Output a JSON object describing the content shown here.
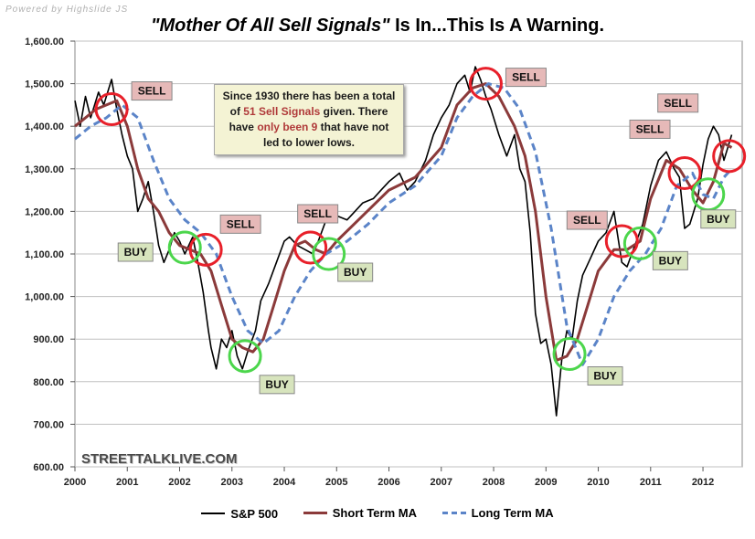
{
  "credit": "Powered by Highslide JS",
  "title": {
    "quoted": "\"Mother Of All Sell Signals\"",
    "rest": " Is In...This Is A Warning."
  },
  "watermark": "STREETTALKLIVE.COM",
  "infobox": {
    "part1": "Since 1930 there has been a total of ",
    "highlight1": "51 Sell Signals",
    "part2": " given. There have ",
    "highlight2": "only been 9",
    "part3": " that have not led to lower lows."
  },
  "legend": {
    "sp500": "S&P 500",
    "short_ma": "Short Term MA",
    "long_ma": "Long Term MA"
  },
  "colors": {
    "sp500": "#000000",
    "short_ma": "#8b3a3a",
    "long_ma": "#5b84c8",
    "sell_circle": "#e8202a",
    "buy_circle": "#4cd64c",
    "sell_label_bg": "#e6b9b8",
    "buy_label_bg": "#d7e4bd",
    "grid": "#c0c0c0"
  },
  "chart_data": {
    "type": "line",
    "title": "\"Mother Of All Sell Signals\" Is In...This Is A Warning.",
    "xlabel": "",
    "ylabel": "",
    "xlim": [
      2000,
      2012.75
    ],
    "ylim": [
      600,
      1600
    ],
    "grid": true,
    "legend_position": "bottom",
    "x_ticks": [
      "2000",
      "2001",
      "2002",
      "2003",
      "2004",
      "2005",
      "2006",
      "2007",
      "2008",
      "2009",
      "2010",
      "2011",
      "2012"
    ],
    "y_ticks": [
      "600.00",
      "700.00",
      "800.00",
      "900.00",
      "1,000.00",
      "1,100.00",
      "1,200.00",
      "1,300.00",
      "1,400.00",
      "1,500.00",
      "1,600.00"
    ],
    "series": [
      {
        "name": "S&P 500",
        "style": "solid",
        "x": [
          2000,
          2000.1,
          2000.2,
          2000.3,
          2000.45,
          2000.55,
          2000.7,
          2000.8,
          2000.9,
          2001.0,
          2001.1,
          2001.2,
          2001.3,
          2001.4,
          2001.5,
          2001.6,
          2001.7,
          2001.8,
          2001.9,
          2002.0,
          2002.1,
          2002.25,
          2002.35,
          2002.45,
          2002.55,
          2002.6,
          2002.7,
          2002.8,
          2002.9,
          2003.0,
          2003.1,
          2003.2,
          2003.3,
          2003.45,
          2003.55,
          2003.7,
          2003.85,
          2004.0,
          2004.1,
          2004.25,
          2004.4,
          2004.55,
          2004.65,
          2004.8,
          2005.0,
          2005.2,
          2005.35,
          2005.5,
          2005.7,
          2005.85,
          2006.0,
          2006.2,
          2006.35,
          2006.5,
          2006.7,
          2006.85,
          2007.0,
          2007.15,
          2007.3,
          2007.45,
          2007.55,
          2007.65,
          2007.75,
          2007.85,
          2007.95,
          2008.1,
          2008.25,
          2008.4,
          2008.5,
          2008.6,
          2008.7,
          2008.8,
          2008.9,
          2009.0,
          2009.1,
          2009.2,
          2009.3,
          2009.4,
          2009.5,
          2009.6,
          2009.7,
          2009.85,
          2010.0,
          2010.15,
          2010.3,
          2010.45,
          2010.55,
          2010.7,
          2010.85,
          2011.0,
          2011.15,
          2011.3,
          2011.45,
          2011.55,
          2011.65,
          2011.75,
          2011.9,
          2012.0,
          2012.1,
          2012.2,
          2012.3,
          2012.4,
          2012.5,
          2012.55
        ],
        "values": [
          1460,
          1400,
          1470,
          1420,
          1480,
          1450,
          1510,
          1440,
          1380,
          1330,
          1300,
          1200,
          1230,
          1270,
          1200,
          1120,
          1080,
          1110,
          1150,
          1130,
          1100,
          1140,
          1080,
          1010,
          920,
          880,
          830,
          900,
          880,
          920,
          860,
          830,
          870,
          920,
          990,
          1030,
          1080,
          1130,
          1140,
          1120,
          1110,
          1100,
          1130,
          1180,
          1190,
          1180,
          1200,
          1220,
          1230,
          1250,
          1270,
          1290,
          1250,
          1270,
          1320,
          1380,
          1420,
          1450,
          1500,
          1520,
          1480,
          1540,
          1510,
          1470,
          1440,
          1380,
          1330,
          1380,
          1300,
          1270,
          1150,
          960,
          890,
          900,
          840,
          720,
          850,
          920,
          900,
          990,
          1050,
          1090,
          1130,
          1150,
          1200,
          1080,
          1070,
          1120,
          1170,
          1260,
          1320,
          1340,
          1300,
          1280,
          1160,
          1170,
          1230,
          1310,
          1370,
          1400,
          1380,
          1320,
          1360,
          1380
        ]
      },
      {
        "name": "Short Term MA",
        "style": "solid",
        "x": [
          2000,
          2000.2,
          2000.4,
          2000.6,
          2000.8,
          2001.0,
          2001.2,
          2001.4,
          2001.6,
          2001.8,
          2002.0,
          2002.2,
          2002.4,
          2002.6,
          2002.8,
          2003.0,
          2003.2,
          2003.4,
          2003.6,
          2003.8,
          2004.0,
          2004.2,
          2004.4,
          2004.6,
          2004.8,
          2005.0,
          2005.5,
          2006.0,
          2006.5,
          2007.0,
          2007.3,
          2007.6,
          2007.85,
          2008.1,
          2008.4,
          2008.6,
          2008.8,
          2009.0,
          2009.2,
          2009.4,
          2009.6,
          2009.8,
          2010.0,
          2010.3,
          2010.55,
          2010.8,
          2011.0,
          2011.3,
          2011.55,
          2011.8,
          2012.0,
          2012.2,
          2012.4,
          2012.55
        ],
        "values": [
          1400,
          1420,
          1440,
          1450,
          1460,
          1400,
          1300,
          1230,
          1200,
          1150,
          1120,
          1110,
          1100,
          1060,
          980,
          900,
          880,
          870,
          900,
          980,
          1060,
          1120,
          1130,
          1110,
          1100,
          1130,
          1190,
          1250,
          1280,
          1350,
          1450,
          1490,
          1500,
          1470,
          1400,
          1330,
          1200,
          1000,
          850,
          860,
          900,
          980,
          1060,
          1110,
          1110,
          1130,
          1230,
          1320,
          1300,
          1250,
          1220,
          1270,
          1360,
          1350
        ]
      },
      {
        "name": "Long Term MA",
        "style": "dashed",
        "x": [
          2000,
          2000.3,
          2000.6,
          2000.9,
          2001.2,
          2001.5,
          2001.8,
          2002.1,
          2002.4,
          2002.7,
          2003.0,
          2003.3,
          2003.6,
          2003.9,
          2004.2,
          2004.5,
          2004.8,
          2005.2,
          2005.6,
          2006.0,
          2006.5,
          2007.0,
          2007.3,
          2007.6,
          2007.9,
          2008.2,
          2008.5,
          2008.8,
          2009.1,
          2009.4,
          2009.7,
          2010.0,
          2010.3,
          2010.6,
          2010.9,
          2011.2,
          2011.5,
          2011.8,
          2012.0,
          2012.2,
          2012.4,
          2012.55
        ],
        "values": [
          1370,
          1400,
          1420,
          1450,
          1420,
          1320,
          1230,
          1180,
          1150,
          1100,
          1000,
          920,
          890,
          920,
          1000,
          1060,
          1100,
          1130,
          1170,
          1220,
          1260,
          1330,
          1420,
          1470,
          1500,
          1490,
          1440,
          1340,
          1160,
          930,
          840,
          900,
          1000,
          1060,
          1100,
          1160,
          1260,
          1290,
          1240,
          1230,
          1280,
          1300
        ]
      }
    ],
    "annotations": [
      {
        "type": "sell",
        "label": "SELL",
        "x": 2000.7,
        "y": 1440
      },
      {
        "type": "sell",
        "label": "SELL",
        "x": 2002.5,
        "y": 1110
      },
      {
        "type": "sell",
        "label": "SELL",
        "x": 2004.5,
        "y": 1115
      },
      {
        "type": "sell",
        "label": "SELL",
        "x": 2007.85,
        "y": 1500
      },
      {
        "type": "sell",
        "label": "SELL",
        "x": 2010.45,
        "y": 1130
      },
      {
        "type": "sell",
        "label": "SELL",
        "x": 2011.65,
        "y": 1290
      },
      {
        "type": "sell",
        "label": "SELL",
        "x": 2012.5,
        "y": 1330
      },
      {
        "type": "buy",
        "label": "BUY",
        "x": 2002.1,
        "y": 1115
      },
      {
        "type": "buy",
        "label": "BUY",
        "x": 2003.25,
        "y": 860
      },
      {
        "type": "buy",
        "label": "BUY",
        "x": 2004.85,
        "y": 1100
      },
      {
        "type": "buy",
        "label": "BUY",
        "x": 2009.45,
        "y": 865
      },
      {
        "type": "buy",
        "label": "BUY",
        "x": 2010.8,
        "y": 1125
      },
      {
        "type": "buy",
        "label": "BUY",
        "x": 2012.1,
        "y": 1240
      }
    ]
  }
}
